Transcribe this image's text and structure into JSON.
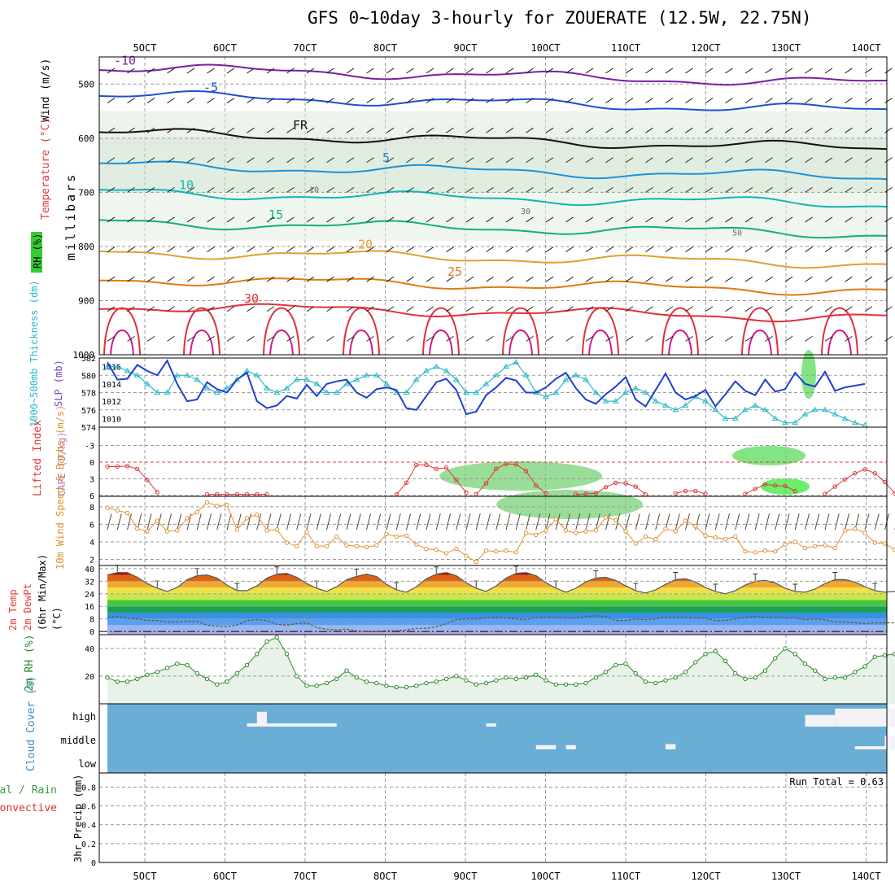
{
  "title": "GFS 0~10day 3-hourly for ZOUERATE (12.5W, 22.75N)",
  "x_ticks": [
    "5OCT",
    "6OCT",
    "7OCT",
    "8OCT",
    "9OCT",
    "10OCT",
    "11OCT",
    "12OCT",
    "13OCT",
    "14OCT"
  ],
  "colors": {
    "grid": "#9a9a9a",
    "slp": "#1f3fd0",
    "thickness": "#2bb8c8",
    "cape": "#e03a3a",
    "wind": "#e09030",
    "rh2m": "#2a8a2a",
    "cloud": "#6aaed6",
    "cloud_fill": "#f2f2f8",
    "precip_total": "#3a9a3a",
    "precip_conv": "#e03030"
  },
  "chart_data": [
    {
      "type": "contour",
      "panel": "upper-air",
      "ylabel": "millibars",
      "side_labels": {
        "wind": "Wind (m/s)",
        "temperature": "Temperature (°C)",
        "rh": "RH (%)"
      },
      "y_ticks": [
        500,
        600,
        700,
        800,
        900,
        1000
      ],
      "ylim": [
        450,
        1000
      ],
      "isotherms": [
        {
          "label": "-10",
          "pressure": 470
        },
        {
          "label": "-5",
          "pressure": 520
        },
        {
          "label": "FR",
          "pressure": 590
        },
        {
          "label": "5",
          "pressure": 650
        },
        {
          "label": "10",
          "pressure": 700
        },
        {
          "label": "15",
          "pressure": 755
        },
        {
          "label": "20",
          "pressure": 810
        },
        {
          "label": "25",
          "pressure": 860
        },
        {
          "label": "30",
          "pressure": 910
        }
      ],
      "rh_labels": [
        "10",
        "30",
        "50"
      ]
    },
    {
      "type": "line",
      "panel": "thickness-slp",
      "series": [
        {
          "name": "1000~500mb Thickness (dm)",
          "axis": "left",
          "ylim": [
            574,
            582
          ],
          "ticks": [
            574,
            576,
            578,
            580,
            582
          ],
          "values": [
            581,
            581,
            580.5,
            580,
            579,
            578,
            578,
            580,
            580,
            579.5,
            578.5,
            578,
            578.5,
            579.5,
            580.5,
            580,
            578.5,
            578,
            578.5,
            579.5,
            579.5,
            579,
            578,
            578,
            579,
            579.5,
            580,
            580,
            579,
            578,
            578,
            579.5,
            580.5,
            581,
            580.5,
            579.5,
            578,
            578,
            579,
            580,
            581,
            581.5,
            580,
            578,
            577.5,
            578,
            579.5,
            580,
            579.5,
            578,
            577,
            577,
            578,
            578.5,
            578,
            577,
            576.5,
            576,
            576.5,
            577.5,
            577,
            576,
            575,
            575,
            576,
            576.5,
            576,
            575,
            574.5,
            574.5,
            575.5,
            576,
            576,
            575.5,
            575,
            574.5,
            574.2
          ]
        },
        {
          "name": "SLP (mb)",
          "axis": "right",
          "ylim": [
            1009,
            1017
          ],
          "ticks": [
            1010,
            1012,
            1014,
            1016
          ],
          "values": [
            1016.5,
            1014.5,
            1014.6,
            1016.2,
            1015.5,
            1015,
            1016.7,
            1014,
            1012,
            1012.2,
            1014.2,
            1013.4,
            1013,
            1014.5,
            1015.3,
            1012,
            1011.2,
            1011.5,
            1012.6,
            1012.3,
            1013.9,
            1012.6,
            1014,
            1014.3,
            1014.5,
            1013,
            1012.4,
            1013.4,
            1013.6,
            1013.3,
            1011.2,
            1011,
            1012.6,
            1014.2,
            1014.6,
            1013.3,
            1010.5,
            1010.8,
            1012.7,
            1013.6,
            1014.7,
            1014.4,
            1013,
            1013,
            1013.6,
            1014.6,
            1015.3,
            1013.5,
            1012.2,
            1011.7,
            1012.8,
            1013.7,
            1014.8,
            1012.2,
            1011.4,
            1013.3,
            1015.2,
            1013,
            1012.2,
            1012.6,
            1013.3,
            1011.4,
            1012.8,
            1014.3,
            1013.2,
            1012.7,
            1014.5,
            1013.1,
            1013.4,
            1015.3,
            1014,
            1013.7,
            1015.4,
            1013.2,
            1013.6,
            1013.8,
            1014
          ]
        }
      ]
    },
    {
      "type": "line",
      "panel": "cape-li",
      "ylabels": [
        "Lifted Index",
        "CAPE (J/kg)"
      ],
      "y_ticks": [
        -3,
        0,
        3,
        6
      ],
      "ylim": [
        -6,
        6
      ],
      "reference_line": 0,
      "series": [
        {
          "name": "Lifted Index",
          "segments": [
            {
              "start": 0,
              "values": [
                0.8,
                0.8,
                0.7,
                1.2,
                3.2,
                5.4
              ]
            },
            {
              "start": 10,
              "values": [
                5.8,
                5.8,
                5.8,
                5.8,
                5.8,
                5.8,
                5.8
              ]
            },
            {
              "start": 29,
              "values": [
                5.8,
                3.7,
                0.5,
                0.5,
                1.2,
                1.0,
                3.2,
                5.5
              ]
            },
            {
              "start": 37,
              "values": [
                5.8,
                3.8,
                1.2,
                0.3,
                0.4,
                1.6,
                4.2,
                5.6
              ]
            },
            {
              "start": 47,
              "values": [
                5.8,
                5.7,
                5.6,
                4.5,
                3.7,
                3.8,
                4.4,
                5.8
              ]
            },
            {
              "start": 57,
              "values": [
                5.6,
                5.2,
                5.2,
                5.7
              ]
            },
            {
              "start": 64,
              "values": [
                5.7,
                4.8,
                4.0,
                4.2,
                4.3,
                5.2
              ]
            },
            {
              "start": 72,
              "values": [
                5.7,
                4.4,
                3.1,
                2.0,
                1.3,
                2.0,
                3.6,
                5.6
              ]
            }
          ]
        }
      ]
    },
    {
      "type": "line",
      "panel": "10m-wind",
      "ylabel": "10m Wind Speed & Barbs (m/s)",
      "y_ticks": [
        2,
        4,
        6,
        8
      ],
      "ylim": [
        1.3,
        9.2
      ],
      "series": [
        {
          "name": "10m Wind Speed (m/s)",
          "values": [
            7.9,
            7.6,
            7.3,
            5.5,
            5.2,
            6.4,
            5.2,
            5.3,
            6.7,
            7.4,
            8.5,
            8.1,
            8.2,
            5.4,
            6.7,
            7.1,
            5.3,
            5.4,
            3.9,
            3.5,
            5.1,
            3.5,
            3.5,
            4.6,
            3.6,
            3.5,
            3.4,
            3.6,
            4.9,
            4.6,
            4.7,
            3.7,
            3.2,
            3.1,
            2.7,
            3.2,
            2.4,
            1.7,
            3.0,
            2.9,
            3.0,
            2.8,
            5.0,
            4.8,
            5.3,
            6.6,
            5.3,
            5.0,
            5.2,
            5.3,
            6.8,
            6.5,
            5.2,
            3.8,
            4.6,
            4.3,
            5.5,
            5.2,
            6.4,
            5.8,
            4.7,
            4.5,
            4.3,
            4.6,
            2.9,
            2.8,
            3.0,
            2.9,
            3.7,
            4.0,
            3.3,
            3.5,
            3.6,
            3.3,
            5.3,
            5.5,
            5.0,
            3.9,
            3.8,
            3.1,
            2.6
          ]
        }
      ]
    },
    {
      "type": "area",
      "panel": "2m-temp",
      "ylabels": [
        "2m Temp",
        "2m DewPt",
        "(6hr Min/Max)",
        "(°C)"
      ],
      "y_ticks": [
        0,
        8,
        16,
        24,
        32,
        40
      ],
      "ylim": [
        -2,
        42
      ],
      "series": [
        {
          "name": "2m Temp",
          "values": [
            36,
            37.5,
            37.5,
            34.5,
            30.5,
            27.5,
            25.5,
            28,
            33,
            35.5,
            36,
            34,
            29.5,
            26,
            26,
            29,
            34,
            36.5,
            37,
            34.5,
            30.5,
            27.5,
            25.5,
            28.5,
            33,
            35,
            36.5,
            35,
            30,
            26.5,
            25,
            28.5,
            33.5,
            36.5,
            37.5,
            35.5,
            31,
            27.5,
            25.5,
            29,
            34,
            37,
            37.5,
            35.5,
            31,
            27.5,
            25,
            27.5,
            31.5,
            34,
            34.5,
            32.5,
            29,
            26,
            24.5,
            26.5,
            30,
            33,
            33.5,
            31.5,
            28,
            25.5,
            24,
            26,
            29.5,
            32,
            32.5,
            31,
            27.5,
            25.5,
            25,
            27,
            30.5,
            33,
            33,
            31.5,
            28.5,
            26,
            25,
            25.5,
            27
          ]
        },
        {
          "name": "2m DewPt",
          "values": [
            9,
            9.5,
            8.5,
            8,
            7,
            7,
            6,
            6,
            6.5,
            6.5,
            4,
            3.5,
            3,
            4,
            7,
            7.5,
            7,
            4.5,
            4,
            5,
            5.5,
            2.5,
            1.5,
            1,
            1.5,
            0.5,
            0,
            0,
            0.5,
            0.5,
            1,
            2,
            2,
            3,
            5,
            7.5,
            8,
            8,
            8.5,
            9,
            8.5,
            8,
            7.5,
            9,
            9,
            9,
            8.5,
            8.5,
            9.5,
            10,
            9.5,
            7,
            7,
            8,
            7.5,
            8,
            9,
            9,
            9,
            8.5,
            8.5,
            7,
            7,
            8,
            9,
            9.5,
            9,
            9,
            8.5,
            8.5,
            7.5,
            8,
            7.5,
            6,
            6,
            5.5,
            5,
            5.5,
            5.5,
            5.5,
            5.5
          ]
        }
      ]
    },
    {
      "type": "area",
      "panel": "2m-rh",
      "ylabel": "2m RH (%)",
      "y_ticks": [
        20,
        40
      ],
      "ylim": [
        0,
        50
      ],
      "series": [
        {
          "name": "2m RH (%)",
          "values": [
            19,
            16,
            16,
            18,
            21,
            23,
            26,
            29,
            28,
            22,
            18,
            14,
            16,
            22,
            28,
            36,
            45,
            48,
            36,
            20,
            13,
            13,
            15,
            18,
            24,
            19,
            16,
            15,
            13,
            12,
            12,
            13,
            15,
            16,
            18,
            20,
            17,
            14,
            15,
            17,
            19,
            18,
            19,
            21,
            17,
            14,
            14,
            14,
            15,
            19,
            23,
            28,
            29,
            22,
            16,
            15,
            17,
            19,
            23,
            30,
            36,
            38,
            31,
            22,
            18,
            19,
            24,
            33,
            40,
            36,
            29,
            24,
            18,
            19,
            19,
            23,
            27,
            34,
            35,
            36,
            27,
            19
          ]
        }
      ]
    },
    {
      "type": "heatmap",
      "panel": "cloud-cover",
      "ylabel": "Cloud Cover (%)",
      "levels": [
        "high",
        "middle",
        "low"
      ],
      "cells": [
        {
          "level": "high",
          "start": 15,
          "end": 16,
          "value": 70
        },
        {
          "level": "high",
          "start": 14,
          "end": 23,
          "value": 15
        },
        {
          "level": "high",
          "start": 38,
          "end": 39,
          "value": 15
        },
        {
          "level": "high",
          "start": 70,
          "end": 73,
          "value": 55
        },
        {
          "level": "high",
          "start": 73,
          "end": 80,
          "value": 85
        },
        {
          "level": "high",
          "start": 80,
          "end": 89,
          "value": 90
        },
        {
          "level": "middle",
          "start": 43,
          "end": 45,
          "value": 20
        },
        {
          "level": "middle",
          "start": 46,
          "end": 47,
          "value": 20
        },
        {
          "level": "middle",
          "start": 56,
          "end": 57,
          "value": 25
        },
        {
          "level": "middle",
          "start": 75,
          "end": 78,
          "value": 15
        },
        {
          "level": "middle",
          "start": 78,
          "end": 89,
          "value": 65
        }
      ]
    },
    {
      "type": "bar",
      "panel": "precip",
      "ylabel": "3hr Precip (mm)",
      "legend": [
        "Total / Rain",
        "Convective"
      ],
      "y_ticks": [
        "0",
        "0.2",
        "0.4",
        "0.6",
        "0.8"
      ],
      "ylim": [
        0,
        0.95
      ],
      "run_total_label": "Run Total = 0.63",
      "run_total": 0.63,
      "bars": [
        {
          "index": 81,
          "total": 0.63,
          "convective": 0.63
        }
      ]
    }
  ]
}
